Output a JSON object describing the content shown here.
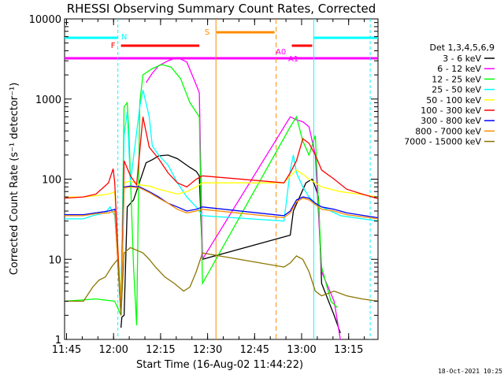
{
  "chart_data": {
    "type": "line",
    "title": "RHESSI Observing Summary Count Rates, Corrected",
    "xlabel": "Start Time (16-Aug-02 11:44:22)",
    "ylabel": "Corrected Count Rate (s⁻¹ detector⁻¹)",
    "yscale": "log",
    "ylim": [
      1,
      10000
    ],
    "xlim_minutes": [
      0,
      100
    ],
    "x_tick_labels": [
      "11:45",
      "12:00",
      "12:15",
      "12:30",
      "12:45",
      "13:00",
      "13:15"
    ],
    "y_tick_labels": [
      "1",
      "10",
      "100",
      "1000",
      "10000"
    ],
    "legend_header": "Det 1,3,4,5,6,9",
    "timestamp": "18-Oct-2021 10:25",
    "series": [
      {
        "name": "3 - 6 keV",
        "color": "#000000",
        "points": [
          [
            18,
            1.4
          ],
          [
            18.3,
            1.9
          ],
          [
            19,
            2
          ],
          [
            20,
            45
          ],
          [
            22,
            55
          ],
          [
            26,
            160
          ],
          [
            28,
            175
          ],
          [
            30,
            195
          ],
          [
            33,
            200
          ],
          [
            36,
            180
          ],
          [
            40,
            140
          ],
          [
            42,
            125
          ],
          [
            43,
            110
          ],
          [
            44,
            10
          ],
          [
            72,
            20
          ],
          [
            73,
            40
          ],
          [
            75,
            60
          ],
          [
            77,
            90
          ],
          [
            79,
            100
          ],
          [
            80,
            80
          ],
          [
            81,
            60
          ],
          [
            82,
            5
          ],
          [
            86,
            2
          ],
          [
            88,
            1.2
          ]
        ]
      },
      {
        "name": "6 - 12 keV",
        "color": "#ff00ff",
        "points": [
          [
            26,
            1600
          ],
          [
            28,
            2100
          ],
          [
            30,
            2600
          ],
          [
            33,
            3000
          ],
          [
            36,
            3300
          ],
          [
            39,
            2900
          ],
          [
            42,
            1500
          ],
          [
            43,
            1200
          ],
          [
            44,
            10
          ],
          [
            72,
            600
          ],
          [
            74,
            550
          ],
          [
            76,
            520
          ],
          [
            78,
            450
          ],
          [
            79,
            300
          ],
          [
            80,
            200
          ],
          [
            82,
            7
          ],
          [
            86,
            3
          ],
          [
            88,
            1
          ]
        ]
      },
      {
        "name": "12 - 25 keV",
        "color": "#00ff00",
        "points": [
          [
            0,
            3
          ],
          [
            10,
            3.2
          ],
          [
            16,
            3
          ],
          [
            18,
            2
          ],
          [
            19,
            800
          ],
          [
            20,
            900
          ],
          [
            20.5,
            400
          ],
          [
            22,
            8
          ],
          [
            23,
            1.5
          ],
          [
            24,
            900
          ],
          [
            25,
            2000
          ],
          [
            28,
            2400
          ],
          [
            31,
            2700
          ],
          [
            34,
            2500
          ],
          [
            37,
            1800
          ],
          [
            40,
            900
          ],
          [
            43,
            600
          ],
          [
            44,
            5
          ],
          [
            72,
            450
          ],
          [
            74,
            600
          ],
          [
            76,
            300
          ],
          [
            78,
            200
          ],
          [
            80,
            350
          ],
          [
            81,
            50
          ],
          [
            82,
            8
          ],
          [
            85,
            3
          ],
          [
            87,
            2.5
          ]
        ]
      },
      {
        "name": "25 - 50 keV",
        "color": "#00ffff",
        "points": [
          [
            0,
            32
          ],
          [
            6,
            32
          ],
          [
            9,
            35
          ],
          [
            13,
            38
          ],
          [
            14.5,
            45
          ],
          [
            16,
            35
          ],
          [
            18,
            3
          ],
          [
            19,
            350
          ],
          [
            20,
            700
          ],
          [
            21,
            90
          ],
          [
            24,
            800
          ],
          [
            25,
            1300
          ],
          [
            27,
            600
          ],
          [
            28,
            260
          ],
          [
            30,
            200
          ],
          [
            33,
            150
          ],
          [
            36,
            90
          ],
          [
            39,
            60
          ],
          [
            42,
            45
          ],
          [
            44,
            35
          ],
          [
            70,
            30
          ],
          [
            72,
            130
          ],
          [
            73,
            200
          ],
          [
            74,
            120
          ],
          [
            76,
            80
          ],
          [
            78,
            60
          ],
          [
            80,
            50
          ],
          [
            82,
            45
          ],
          [
            85,
            40
          ],
          [
            88,
            35
          ],
          [
            100,
            30
          ]
        ]
      },
      {
        "name": "50 - 100 keV",
        "color": "#ffff00",
        "points": [
          [
            0,
            60
          ],
          [
            6,
            60
          ],
          [
            10,
            62
          ],
          [
            14,
            65
          ],
          [
            16,
            70
          ],
          [
            18,
            3
          ],
          [
            19,
            90
          ],
          [
            21,
            95
          ],
          [
            24,
            85
          ],
          [
            27,
            82
          ],
          [
            30,
            75
          ],
          [
            33,
            70
          ],
          [
            36,
            65
          ],
          [
            39,
            70
          ],
          [
            42,
            80
          ],
          [
            44,
            90
          ],
          [
            70,
            90
          ],
          [
            72,
            110
          ],
          [
            74,
            130
          ],
          [
            76,
            115
          ],
          [
            78,
            100
          ],
          [
            80,
            90
          ],
          [
            82,
            80
          ],
          [
            88,
            70
          ],
          [
            94,
            65
          ],
          [
            100,
            60
          ]
        ]
      },
      {
        "name": "100 - 300 keV",
        "color": "#ff0000",
        "points": [
          [
            0,
            58
          ],
          [
            6,
            60
          ],
          [
            10,
            65
          ],
          [
            14,
            90
          ],
          [
            15.5,
            135
          ],
          [
            16,
            90
          ],
          [
            18,
            2
          ],
          [
            19,
            170
          ],
          [
            21,
            110
          ],
          [
            23,
            85
          ],
          [
            25,
            600
          ],
          [
            27,
            250
          ],
          [
            30,
            180
          ],
          [
            33,
            120
          ],
          [
            36,
            90
          ],
          [
            39,
            80
          ],
          [
            42,
            100
          ],
          [
            44,
            110
          ],
          [
            70,
            90
          ],
          [
            72,
            120
          ],
          [
            74,
            170
          ],
          [
            76,
            320
          ],
          [
            78,
            280
          ],
          [
            80,
            200
          ],
          [
            82,
            130
          ],
          [
            86,
            100
          ],
          [
            90,
            75
          ],
          [
            95,
            65
          ],
          [
            100,
            57
          ]
        ]
      },
      {
        "name": "300 - 800 keV",
        "color": "#0000ff",
        "points": [
          [
            0,
            36
          ],
          [
            6,
            36
          ],
          [
            10,
            38
          ],
          [
            14,
            40
          ],
          [
            16,
            42
          ],
          [
            18,
            2
          ],
          [
            19,
            80
          ],
          [
            21,
            82
          ],
          [
            24,
            80
          ],
          [
            27,
            70
          ],
          [
            30,
            60
          ],
          [
            33,
            50
          ],
          [
            36,
            45
          ],
          [
            39,
            40
          ],
          [
            42,
            42
          ],
          [
            44,
            45
          ],
          [
            70,
            35
          ],
          [
            72,
            40
          ],
          [
            74,
            55
          ],
          [
            76,
            60
          ],
          [
            78,
            58
          ],
          [
            80,
            50
          ],
          [
            82,
            45
          ],
          [
            86,
            42
          ],
          [
            90,
            38
          ],
          [
            100,
            33
          ]
        ]
      },
      {
        "name": "800 - 7000 keV",
        "color": "#ff8c00",
        "points": [
          [
            0,
            35
          ],
          [
            6,
            35
          ],
          [
            10,
            37
          ],
          [
            14,
            38
          ],
          [
            16,
            40
          ],
          [
            18,
            2
          ],
          [
            19,
            78
          ],
          [
            21,
            80
          ],
          [
            24,
            78
          ],
          [
            27,
            68
          ],
          [
            30,
            58
          ],
          [
            33,
            50
          ],
          [
            36,
            42
          ],
          [
            39,
            38
          ],
          [
            42,
            40
          ],
          [
            44,
            42
          ],
          [
            70,
            33
          ],
          [
            72,
            38
          ],
          [
            74,
            52
          ],
          [
            76,
            58
          ],
          [
            78,
            55
          ],
          [
            80,
            48
          ],
          [
            82,
            42
          ],
          [
            86,
            40
          ],
          [
            90,
            36
          ],
          [
            100,
            32
          ]
        ]
      },
      {
        "name": "7000 - 15000 keV",
        "color": "#8b7500",
        "points": [
          [
            0,
            3
          ],
          [
            6,
            3
          ],
          [
            9,
            4.5
          ],
          [
            11,
            5.5
          ],
          [
            13,
            6
          ],
          [
            15,
            8
          ],
          [
            16,
            9
          ],
          [
            17,
            10
          ],
          [
            18,
            2
          ],
          [
            19,
            12
          ],
          [
            21,
            14
          ],
          [
            23,
            13
          ],
          [
            25,
            12
          ],
          [
            27,
            10
          ],
          [
            29,
            8
          ],
          [
            32,
            6
          ],
          [
            35,
            5
          ],
          [
            38,
            4
          ],
          [
            40,
            4.5
          ],
          [
            42,
            7
          ],
          [
            44,
            12
          ],
          [
            70,
            8
          ],
          [
            72,
            9
          ],
          [
            74,
            11
          ],
          [
            76,
            10
          ],
          [
            78,
            7
          ],
          [
            80,
            4
          ],
          [
            82,
            3.5
          ],
          [
            86,
            4
          ],
          [
            90,
            3.5
          ],
          [
            95,
            3.2
          ],
          [
            100,
            3
          ]
        ]
      }
    ]
  },
  "flags": {
    "labels": [
      "N",
      "F",
      "S",
      "A0",
      "A1"
    ],
    "colors": {
      "N": "#00ffff",
      "F": "#ff0000",
      "S": "#ff8c00",
      "A": "#ff00ff"
    }
  }
}
